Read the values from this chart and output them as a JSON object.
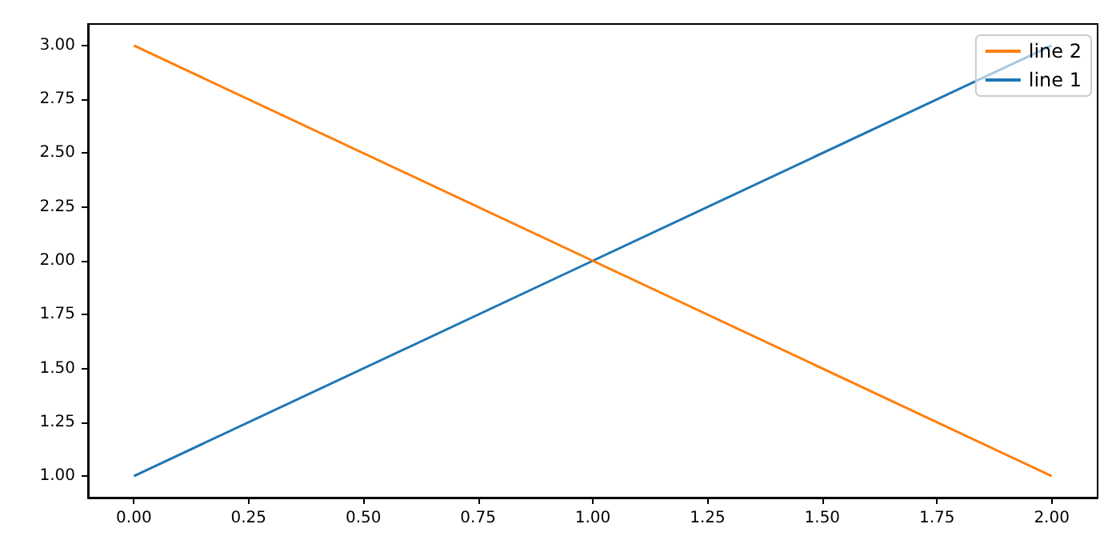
{
  "chart_data": {
    "type": "line",
    "x": [
      0,
      1,
      2
    ],
    "series": [
      {
        "name": "line 2",
        "color": "#ff7f0e",
        "values": [
          3,
          2,
          1
        ]
      },
      {
        "name": "line 1",
        "color": "#1f77b4",
        "values": [
          1,
          2,
          3
        ]
      }
    ],
    "xlim": [
      -0.1,
      2.1
    ],
    "xticks": [
      {
        "value": 0,
        "label": "0.00"
      },
      {
        "value": 0.25,
        "label": "0.25"
      },
      {
        "value": 0.5,
        "label": "0.50"
      },
      {
        "value": 0.75,
        "label": "0.75"
      },
      {
        "value": 1,
        "label": "1.00"
      },
      {
        "value": 1.25,
        "label": "1.25"
      },
      {
        "value": 1.5,
        "label": "1.50"
      },
      {
        "value": 1.75,
        "label": "1.75"
      },
      {
        "value": 2,
        "label": "2.00"
      }
    ],
    "ylim": [
      0.9,
      3.1
    ],
    "yticks": [
      {
        "value": 1,
        "label": "1.00"
      },
      {
        "value": 1.25,
        "label": "1.25"
      },
      {
        "value": 1.5,
        "label": "1.50"
      },
      {
        "value": 1.75,
        "label": "1.75"
      },
      {
        "value": 2,
        "label": "2.00"
      },
      {
        "value": 2.25,
        "label": "2.25"
      },
      {
        "value": 2.5,
        "label": "2.50"
      },
      {
        "value": 2.75,
        "label": "2.75"
      },
      {
        "value": 3,
        "label": "3.00"
      }
    ],
    "legend": "top right",
    "marker": "none",
    "line_style": "solid",
    "grid": false
  }
}
